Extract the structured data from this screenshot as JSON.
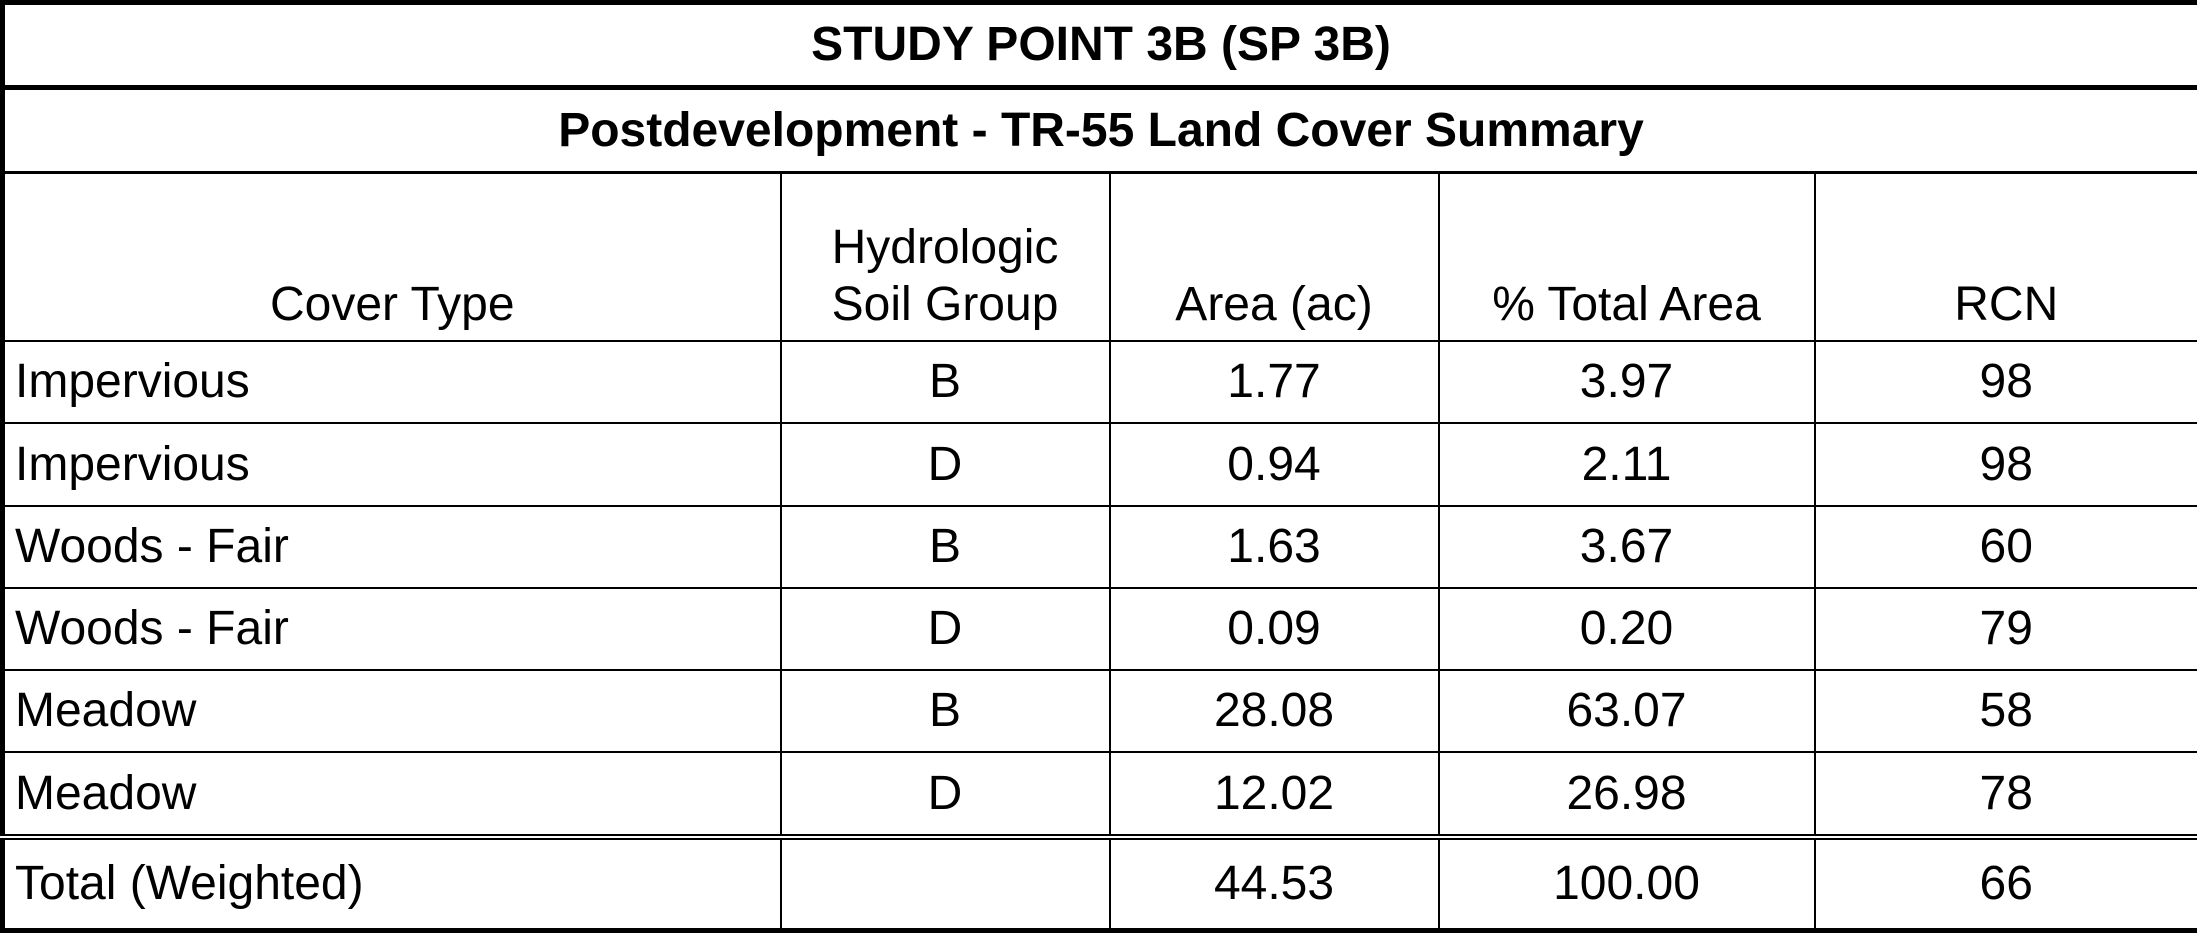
{
  "header": {
    "title": "STUDY POINT 3B (SP 3B)",
    "subtitle": "Postdevelopment - TR-55 Land Cover Summary"
  },
  "table": {
    "columns": [
      "Cover Type",
      "Hydrologic Soil Group",
      "Area (ac)",
      "% Total Area",
      "RCN"
    ],
    "rows": [
      [
        "Impervious",
        "B",
        "1.77",
        "3.97",
        "98"
      ],
      [
        "Impervious",
        "D",
        "0.94",
        "2.11",
        "98"
      ],
      [
        "Woods - Fair",
        "B",
        "1.63",
        "3.67",
        "60"
      ],
      [
        "Woods - Fair",
        "D",
        "0.09",
        "0.20",
        "79"
      ],
      [
        "Meadow",
        "B",
        "28.08",
        "63.07",
        "58"
      ],
      [
        "Meadow",
        "D",
        "12.02",
        "26.98",
        "78"
      ]
    ],
    "total": [
      "Total (Weighted)",
      "",
      "44.53",
      "100.00",
      "66"
    ]
  }
}
